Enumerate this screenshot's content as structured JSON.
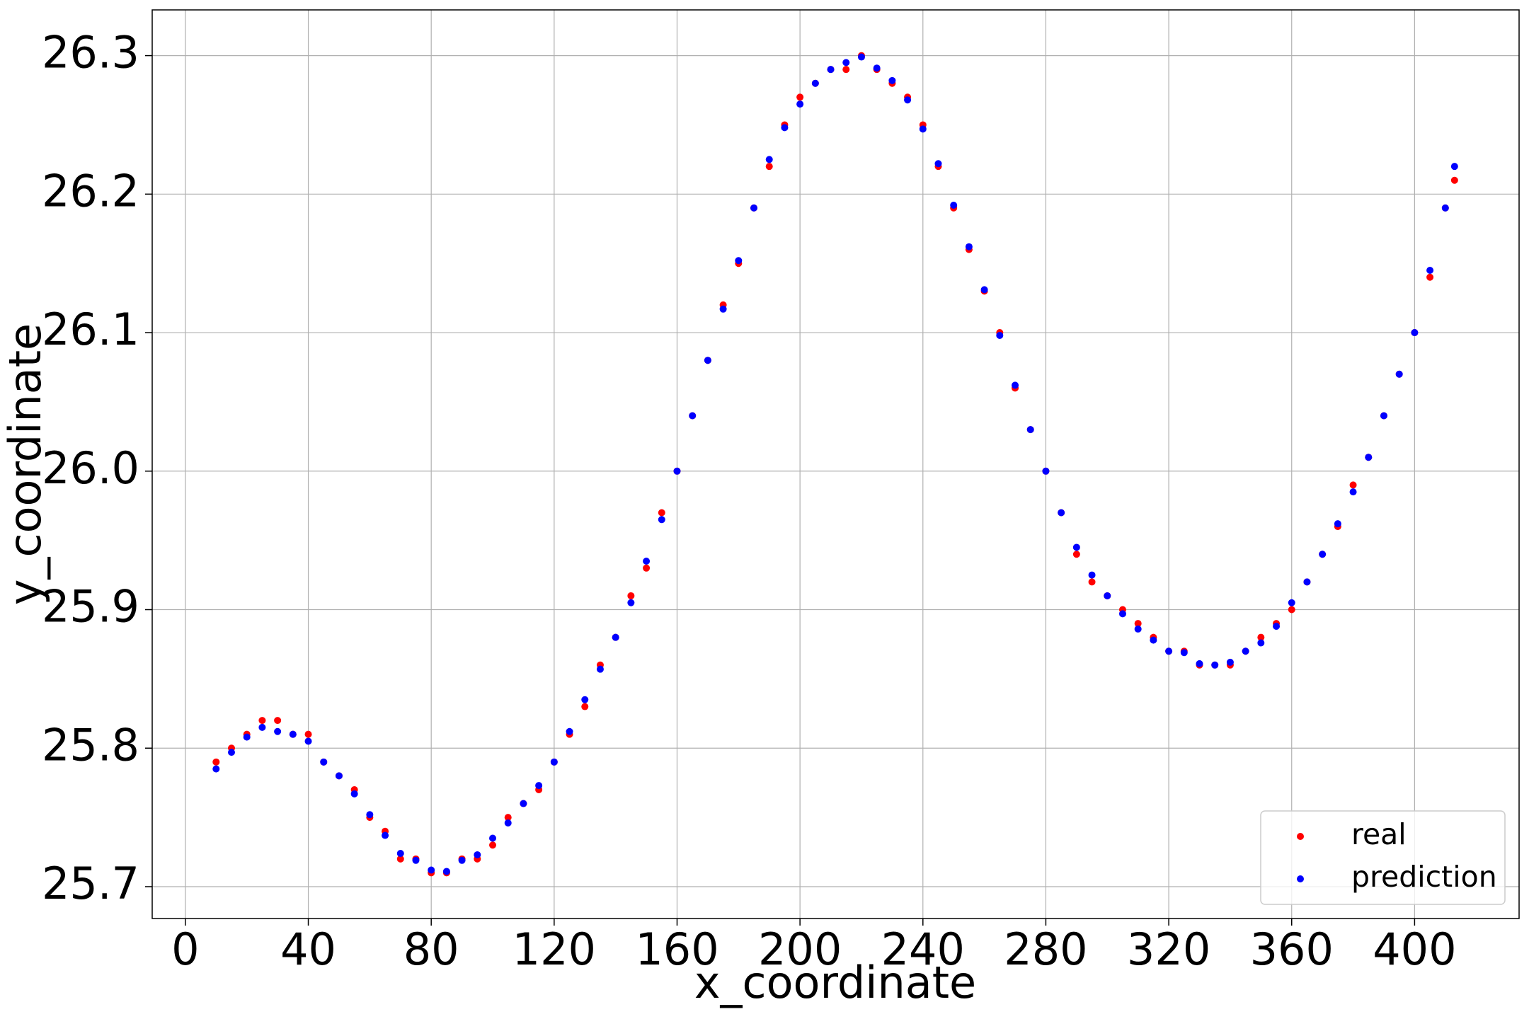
{
  "chart_data": {
    "type": "scatter",
    "xlabel": "x_coordinate",
    "ylabel": "y_coordinate",
    "x": [
      10,
      15,
      20,
      25,
      30,
      35,
      40,
      45,
      50,
      55,
      60,
      65,
      70,
      75,
      80,
      85,
      90,
      95,
      100,
      105,
      110,
      115,
      120,
      125,
      130,
      135,
      140,
      145,
      150,
      155,
      160,
      165,
      170,
      175,
      180,
      185,
      190,
      195,
      200,
      205,
      210,
      215,
      220,
      225,
      230,
      235,
      240,
      245,
      250,
      255,
      260,
      265,
      270,
      275,
      280,
      285,
      290,
      295,
      300,
      305,
      310,
      315,
      320,
      325,
      330,
      335,
      340,
      345,
      350,
      355,
      360,
      365,
      370,
      375,
      380,
      385,
      390,
      395,
      400,
      405,
      410,
      413
    ],
    "series": [
      {
        "name": "real",
        "color": "#ff0000",
        "values": [
          25.79,
          25.8,
          25.81,
          25.82,
          25.82,
          25.81,
          25.81,
          25.79,
          25.78,
          25.77,
          25.75,
          25.74,
          25.72,
          25.72,
          25.71,
          25.71,
          25.72,
          25.72,
          25.73,
          25.75,
          25.76,
          25.77,
          25.79,
          25.81,
          25.83,
          25.86,
          25.88,
          25.91,
          25.93,
          25.97,
          26.0,
          26.04,
          26.08,
          26.12,
          26.15,
          26.19,
          26.22,
          26.25,
          26.27,
          26.28,
          26.29,
          26.29,
          26.3,
          26.29,
          26.28,
          26.27,
          26.25,
          26.22,
          26.19,
          26.16,
          26.13,
          26.1,
          26.06,
          26.03,
          26.0,
          25.97,
          25.94,
          25.92,
          25.91,
          25.9,
          25.89,
          25.88,
          25.87,
          25.87,
          25.86,
          25.86,
          25.86,
          25.87,
          25.88,
          25.89,
          25.9,
          25.92,
          25.94,
          25.96,
          25.99,
          26.01,
          26.04,
          26.07,
          26.1,
          26.14,
          26.19,
          26.21
        ]
      },
      {
        "name": "prediction",
        "color": "#0000ff",
        "values": [
          25.785,
          25.797,
          25.808,
          25.815,
          25.812,
          25.81,
          25.805,
          25.79,
          25.78,
          25.767,
          25.752,
          25.737,
          25.724,
          25.719,
          25.712,
          25.711,
          25.719,
          25.723,
          25.735,
          25.746,
          25.76,
          25.773,
          25.79,
          25.812,
          25.835,
          25.857,
          25.88,
          25.905,
          25.935,
          25.965,
          26.0,
          26.04,
          26.08,
          26.117,
          26.152,
          26.19,
          26.225,
          26.248,
          26.265,
          26.28,
          26.29,
          26.295,
          26.299,
          26.291,
          26.282,
          26.268,
          26.247,
          26.222,
          26.192,
          26.162,
          26.131,
          26.098,
          26.062,
          26.03,
          26.0,
          25.97,
          25.945,
          25.925,
          25.91,
          25.897,
          25.886,
          25.878,
          25.87,
          25.869,
          25.861,
          25.86,
          25.862,
          25.87,
          25.876,
          25.888,
          25.905,
          25.92,
          25.94,
          25.962,
          25.985,
          26.01,
          26.04,
          26.07,
          26.1,
          26.145,
          26.19,
          26.22
        ]
      }
    ],
    "xlim": [
      -10.8,
      434
    ],
    "ylim": [
      25.677,
      26.333
    ],
    "xticks": [
      0,
      40,
      80,
      120,
      160,
      200,
      240,
      280,
      320,
      360,
      400
    ],
    "yticks": [
      25.7,
      25.8,
      25.9,
      {
        "value": 26,
        "label": "26.0"
      },
      26.1,
      26.2,
      26.3
    ],
    "grid": true,
    "legend": "lower right"
  }
}
